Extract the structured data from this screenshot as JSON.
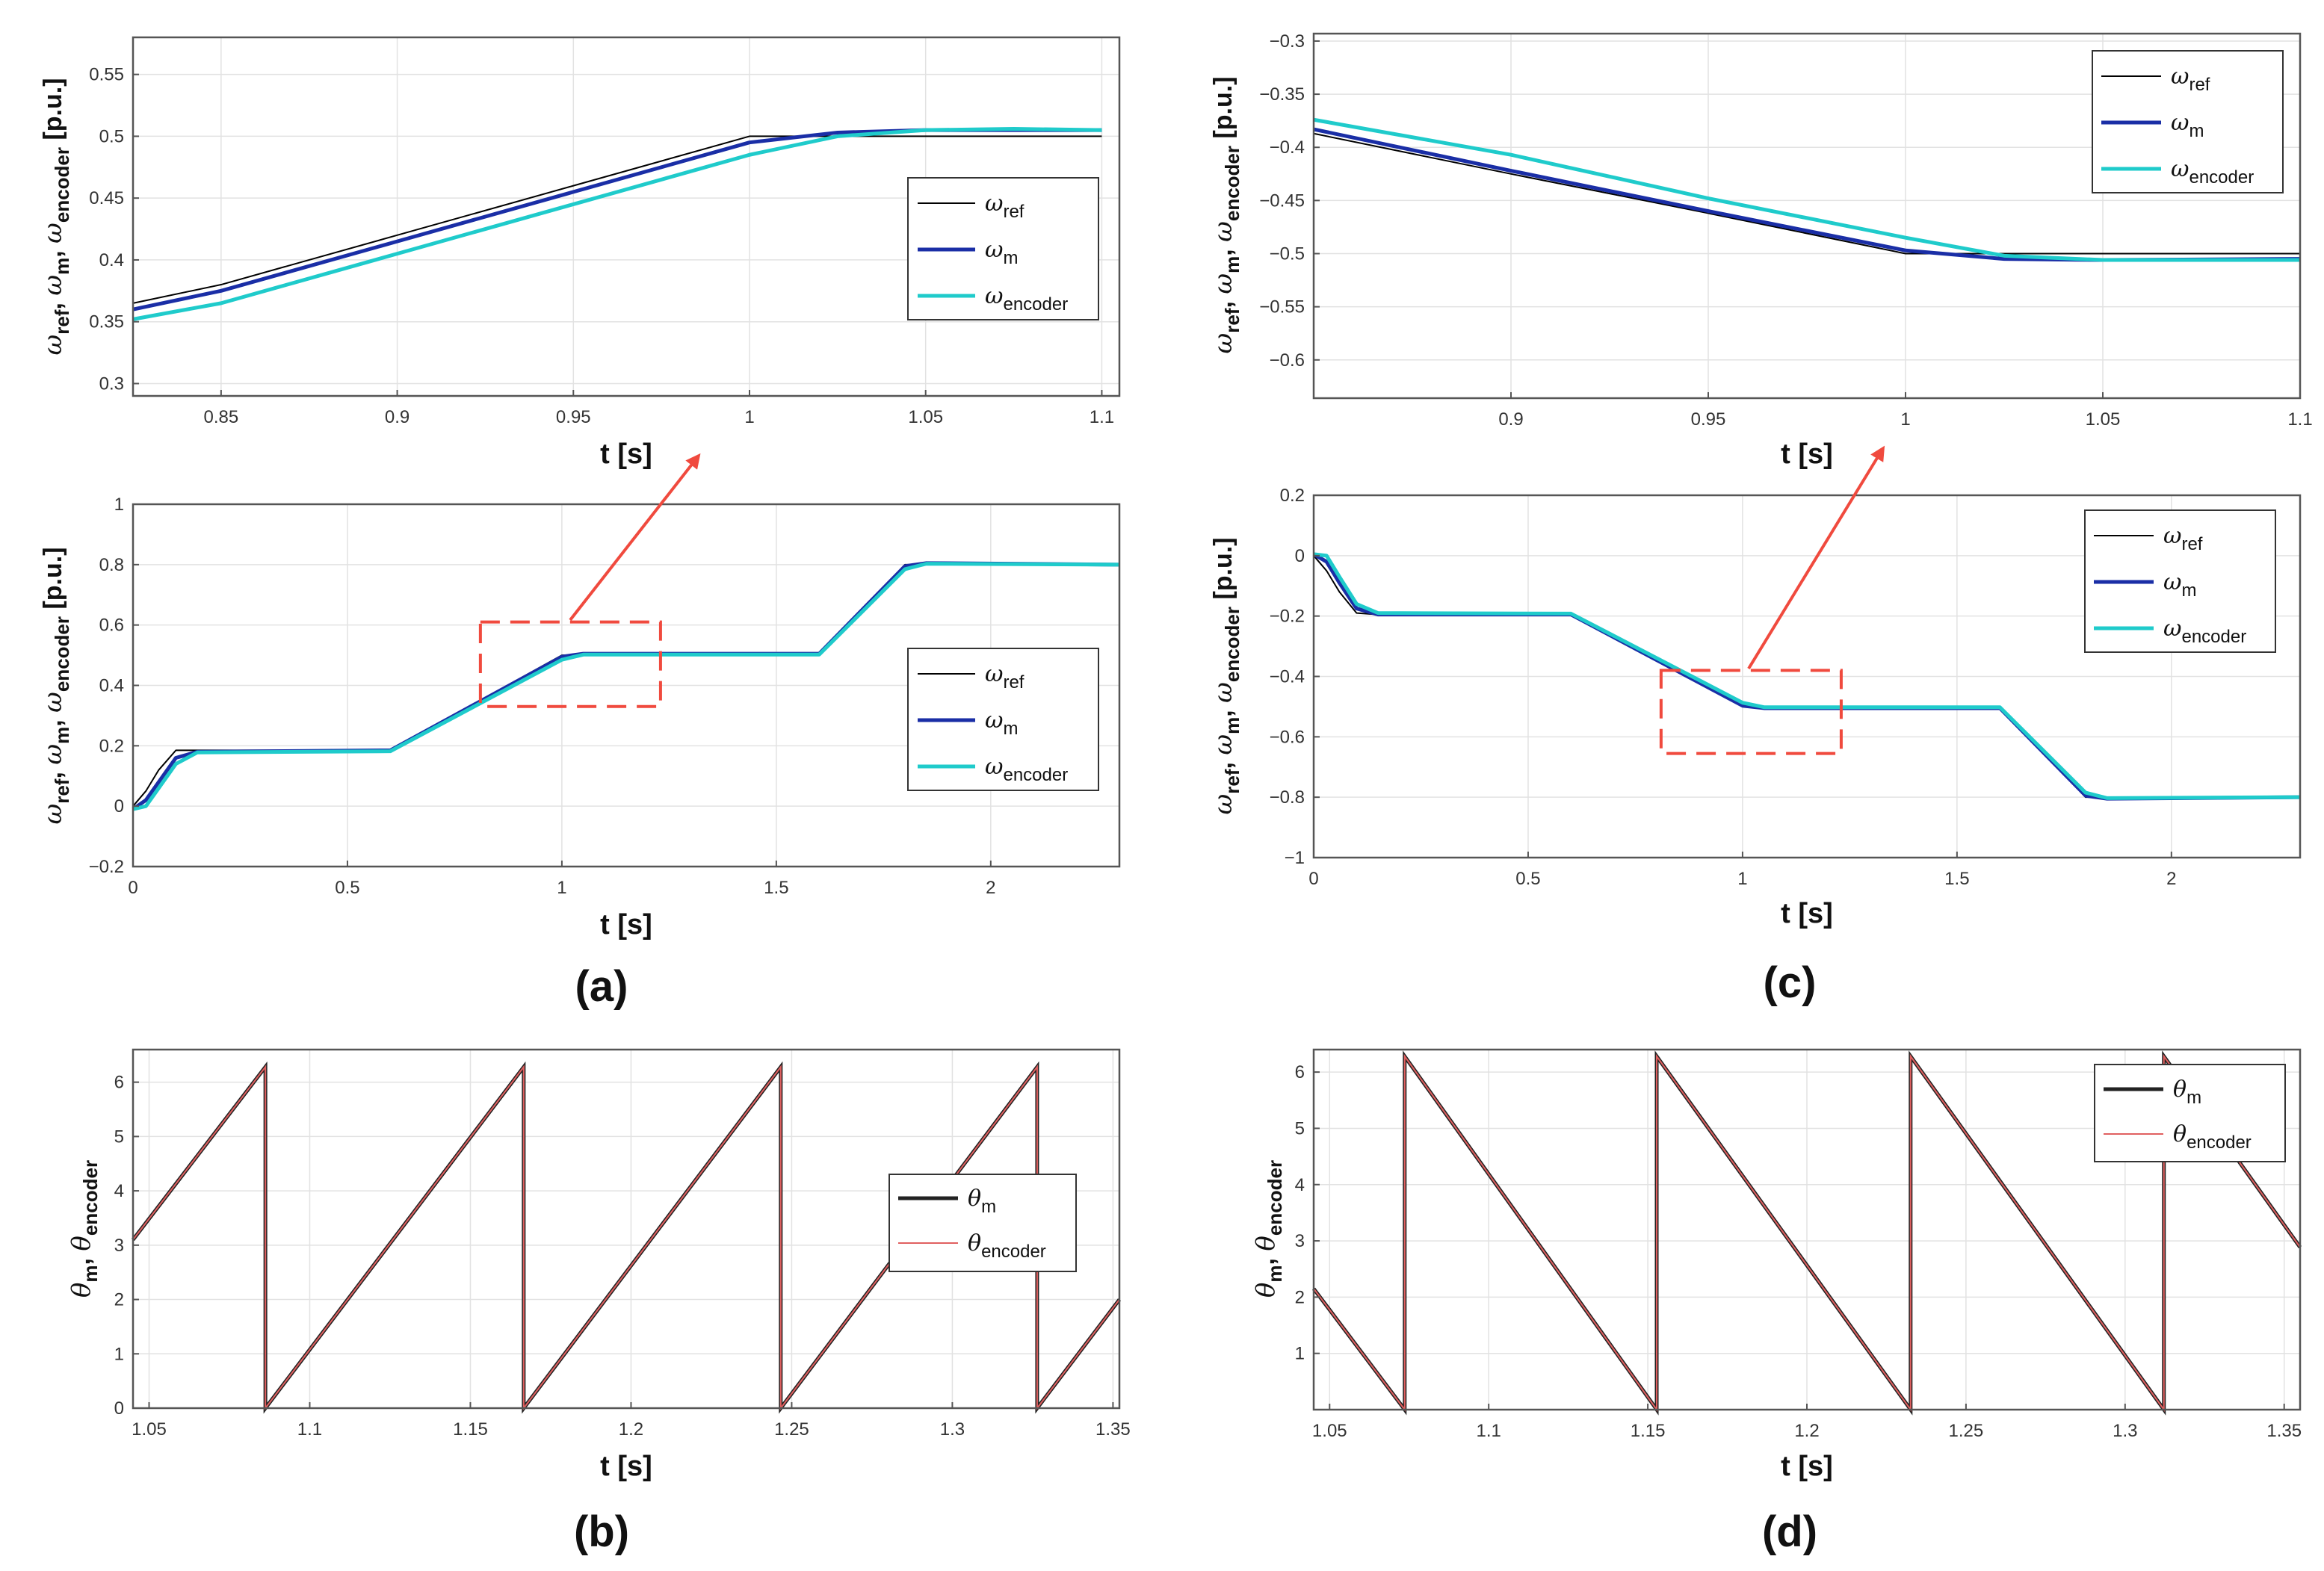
{
  "colors": {
    "ref": "#000000",
    "m": "#1a2ea6",
    "encoder": "#1fcbcb",
    "theta_m": "#222222",
    "theta_encoder": "#e06060",
    "highlight": "#f04a3e"
  },
  "panel_labels": {
    "a": "(a)",
    "b": "(b)",
    "c": "(c)",
    "d": "(d)"
  },
  "chart_data": [
    {
      "id": "a_zoom",
      "type": "line",
      "x": [
        0.825,
        0.85,
        0.9,
        0.95,
        1.0,
        1.025,
        1.05,
        1.075,
        1.1
      ],
      "series": [
        {
          "name": "ω_ref",
          "key": "ref",
          "values": [
            0.365,
            0.38,
            0.42,
            0.46,
            0.5,
            0.5,
            0.5,
            0.5,
            0.5
          ]
        },
        {
          "name": "ω_m",
          "key": "m",
          "values": [
            0.36,
            0.375,
            0.415,
            0.455,
            0.495,
            0.503,
            0.505,
            0.505,
            0.505
          ]
        },
        {
          "name": "ω_encoder",
          "key": "encoder",
          "values": [
            0.352,
            0.365,
            0.405,
            0.445,
            0.485,
            0.5,
            0.505,
            0.506,
            0.505
          ]
        }
      ],
      "xlabel": "t [s]",
      "ylabel": {
        "main": "ω_ref, ω_m, ω_encoder",
        "unit": "[p.u.]"
      },
      "xlim": [
        0.825,
        1.105
      ],
      "ylim": [
        0.29,
        0.58
      ],
      "xticks": [
        "0.85",
        "0.9",
        "0.95",
        "1",
        "1.05",
        "1.1"
      ],
      "yticks": [
        "0.3",
        "0.35",
        "0.4",
        "0.45",
        "0.5",
        "0.55"
      ],
      "legend": [
        "ω_ref",
        "ω_m",
        "ω_encoder"
      ],
      "legend_position": "right"
    },
    {
      "id": "a_main",
      "type": "line",
      "x": [
        0,
        0.03,
        0.06,
        0.1,
        0.15,
        0.6,
        1.0,
        1.05,
        1.6,
        1.8,
        1.85,
        2.3
      ],
      "series": [
        {
          "name": "ω_ref",
          "key": "ref",
          "values": [
            0,
            0.05,
            0.12,
            0.185,
            0.185,
            0.185,
            0.5,
            0.5,
            0.5,
            0.8,
            0.8,
            0.8
          ]
        },
        {
          "name": "ω_m",
          "key": "m",
          "values": [
            -0.01,
            0.02,
            0.08,
            0.16,
            0.18,
            0.185,
            0.495,
            0.505,
            0.505,
            0.795,
            0.805,
            0.8
          ]
        },
        {
          "name": "ω_encoder",
          "key": "encoder",
          "values": [
            -0.01,
            0.0,
            0.06,
            0.14,
            0.178,
            0.182,
            0.485,
            0.502,
            0.502,
            0.785,
            0.803,
            0.8
          ]
        }
      ],
      "xlabel": "t [s]",
      "ylabel": {
        "main": "ω_ref, ω_m, ω_encoder",
        "unit": "[p.u.]"
      },
      "xlim": [
        0,
        2.3
      ],
      "ylim": [
        -0.2,
        1
      ],
      "xticks": [
        "0",
        "0.5",
        "1",
        "1.5",
        "2"
      ],
      "yticks": [
        "−0.2",
        "0",
        "0.2",
        "0.4",
        "0.6",
        "0.8",
        "1"
      ],
      "legend": [
        "ω_ref",
        "ω_m",
        "ω_encoder"
      ],
      "legend_position": "right",
      "highlight_box": {
        "x": [
          0.81,
          1.23
        ],
        "y": [
          0.33,
          0.61
        ]
      }
    },
    {
      "id": "b",
      "type": "line",
      "xlim": [
        1.045,
        1.352
      ],
      "ylim": [
        0,
        6.6
      ],
      "sawtooth": {
        "direction": "up",
        "reset_times": [
          1.0862,
          1.1666,
          1.2466,
          1.3264
        ],
        "start_value": 3.1,
        "peak": 6.28
      },
      "series": [
        {
          "name": "θ_m",
          "key": "theta_m"
        },
        {
          "name": "θ_encoder",
          "key": "theta_encoder"
        }
      ],
      "xlabel": "t [s]",
      "ylabel": {
        "main": "θ_m, θ_encoder"
      },
      "xticks": [
        "1.05",
        "1.1",
        "1.15",
        "1.2",
        "1.25",
        "1.3",
        "1.35"
      ],
      "yticks": [
        "0",
        "1",
        "2",
        "3",
        "4",
        "5",
        "6"
      ],
      "legend": [
        "θ_m",
        "θ_encoder"
      ],
      "legend_position": "right"
    },
    {
      "id": "c_zoom",
      "type": "line",
      "x": [
        0.85,
        0.9,
        0.95,
        1.0,
        1.025,
        1.05,
        1.1
      ],
      "series": [
        {
          "name": "ω_ref",
          "key": "ref",
          "values": [
            -0.387,
            -0.425,
            -0.462,
            -0.5,
            -0.5,
            -0.5,
            -0.5
          ]
        },
        {
          "name": "ω_m",
          "key": "m",
          "values": [
            -0.383,
            -0.422,
            -0.46,
            -0.497,
            -0.505,
            -0.506,
            -0.505
          ]
        },
        {
          "name": "ω_encoder",
          "key": "encoder",
          "values": [
            -0.374,
            -0.407,
            -0.448,
            -0.485,
            -0.502,
            -0.506,
            -0.506
          ]
        }
      ],
      "xlabel": "t [s]",
      "ylabel": {
        "main": "ω_ref, ω_m, ω_encoder",
        "unit": "[p.u.]"
      },
      "xlim": [
        0.85,
        1.1
      ],
      "ylim": [
        -0.636,
        -0.293
      ],
      "xticks": [
        "0.9",
        "0.95",
        "1",
        "1.05",
        "1.1"
      ],
      "yticks": [
        "−0.3",
        "−0.35",
        "−0.4",
        "−0.45",
        "−0.5",
        "−0.55",
        "−0.6"
      ],
      "legend": [
        "ω_ref",
        "ω_m",
        "ω_encoder"
      ],
      "legend_position": "top-right"
    },
    {
      "id": "c_main",
      "type": "line",
      "x": [
        0,
        0.03,
        0.06,
        0.1,
        0.15,
        0.6,
        1.0,
        1.05,
        1.6,
        1.8,
        1.85,
        2.3
      ],
      "series": [
        {
          "name": "ω_ref",
          "key": "ref",
          "values": [
            0,
            -0.05,
            -0.12,
            -0.19,
            -0.195,
            -0.195,
            -0.5,
            -0.5,
            -0.5,
            -0.8,
            -0.8,
            -0.8
          ]
        },
        {
          "name": "ω_m",
          "key": "m",
          "values": [
            0.005,
            -0.02,
            -0.09,
            -0.175,
            -0.195,
            -0.195,
            -0.497,
            -0.505,
            -0.505,
            -0.795,
            -0.805,
            -0.8
          ]
        },
        {
          "name": "ω_encoder",
          "key": "encoder",
          "values": [
            0.005,
            0.0,
            -0.07,
            -0.16,
            -0.19,
            -0.192,
            -0.487,
            -0.502,
            -0.502,
            -0.785,
            -0.803,
            -0.8
          ]
        }
      ],
      "xlabel": "t [s]",
      "ylabel": {
        "main": "ω_ref, ω_m, ω_encoder",
        "unit": "[p.u.]"
      },
      "xlim": [
        0,
        2.3
      ],
      "ylim": [
        -1,
        0.2
      ],
      "xticks": [
        "0",
        "0.5",
        "1",
        "1.5",
        "2"
      ],
      "yticks": [
        "−1",
        "−0.8",
        "−0.6",
        "−0.4",
        "−0.2",
        "0",
        "0.2"
      ],
      "legend": [
        "ω_ref",
        "ω_m",
        "ω_encoder"
      ],
      "legend_position": "top-right",
      "highlight_box": {
        "x": [
          0.81,
          1.23
        ],
        "y": [
          -0.655,
          -0.38
        ]
      }
    },
    {
      "id": "d",
      "type": "line",
      "xlim": [
        1.045,
        1.355
      ],
      "ylim": [
        0,
        6.4
      ],
      "sawtooth": {
        "direction": "down",
        "reset_times": [
          1.0736,
          1.1528,
          1.2326,
          1.3122
        ],
        "start_value": 2.15,
        "peak": 6.28
      },
      "series": [
        {
          "name": "θ_m",
          "key": "theta_m"
        },
        {
          "name": "θ_encoder",
          "key": "theta_encoder"
        }
      ],
      "xlabel": "t [s]",
      "ylabel": {
        "main": "θ_m, θ_encoder"
      },
      "xticks": [
        "1.05",
        "1.1",
        "1.15",
        "1.2",
        "1.25",
        "1.3",
        "1.35"
      ],
      "yticks": [
        "1",
        "2",
        "3",
        "4",
        "5",
        "6"
      ],
      "legend": [
        "θ_m",
        "θ_encoder"
      ],
      "legend_position": "top-right"
    }
  ]
}
